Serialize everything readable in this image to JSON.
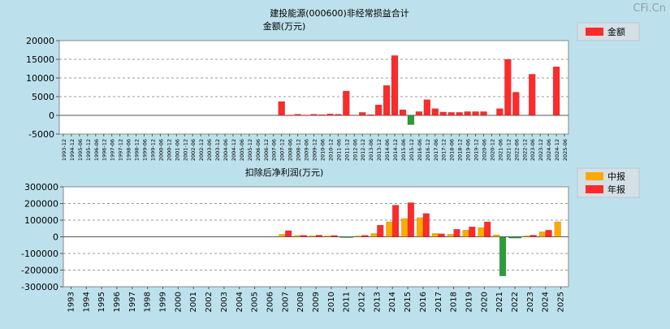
{
  "watermark": "CFi.Cn",
  "colors": {
    "background": "#bde1ec",
    "plot_bg": "#ffffff",
    "positive": "#ff2a2a",
    "negative": "#2f9a3a",
    "interim": "#ffaa00",
    "annual": "#ff2a2a",
    "legend_bg": "#d4dfe6"
  },
  "chart_data": [
    {
      "type": "bar",
      "title": "建投能源(000600)非经常损益合计",
      "ylabel": "金额(万元)",
      "legend": [
        "金额"
      ],
      "ylim": [
        -5000,
        20000
      ],
      "yticks": [
        -5000,
        0,
        5000,
        10000,
        15000,
        20000
      ],
      "categories": [
        "1993-12",
        "1994-12",
        "1995-06",
        "1995-12",
        "1996-06",
        "1996-12",
        "1997-06",
        "1997-12",
        "1998-06",
        "1998-12",
        "1999-06",
        "1999-12",
        "2000-06",
        "2000-12",
        "2001-06",
        "2001-12",
        "2002-06",
        "2002-12",
        "2003-06",
        "2003-12",
        "2004-06",
        "2004-12",
        "2005-06",
        "2005-12",
        "2006-06",
        "2006-12",
        "2007-06",
        "2007-12",
        "2008-06",
        "2008-12",
        "2009-06",
        "2009-12",
        "2010-06",
        "2010-12",
        "2011-06",
        "2011-12",
        "2012-06",
        "2012-12",
        "2013-06",
        "2013-12",
        "2014-06",
        "2014-12",
        "2015-06",
        "2015-12",
        "2016-06",
        "2016-12",
        "2017-06",
        "2017-12",
        "2018-06",
        "2018-12",
        "2019-06",
        "2019-12",
        "2020-06",
        "2020-12",
        "2021-06",
        "2021-12",
        "2022-06",
        "2022-12",
        "2023-06",
        "2023-12",
        "2024-06",
        "2024-12",
        "2025-06"
      ],
      "values": [
        0,
        0,
        0,
        0,
        0,
        0,
        0,
        0,
        0,
        0,
        0,
        0,
        0,
        0,
        0,
        0,
        0,
        0,
        0,
        0,
        0,
        0,
        0,
        0,
        0,
        0,
        0,
        3700,
        100,
        300,
        100,
        300,
        200,
        400,
        300,
        6500,
        0,
        800,
        200,
        2800,
        8000,
        16000,
        1500,
        -2500,
        1000,
        4200,
        1800,
        900,
        800,
        800,
        1000,
        1000,
        1000,
        0,
        1800,
        15000,
        6200,
        0,
        11000,
        0,
        0,
        13000,
        0
      ]
    },
    {
      "type": "bar",
      "title": "扣除后净利润(万元)",
      "legend": [
        "中报",
        "年报"
      ],
      "ylim": [
        -300000,
        300000
      ],
      "yticks": [
        -300000,
        -200000,
        -100000,
        0,
        100000,
        200000,
        300000
      ],
      "categories": [
        "1993",
        "1994",
        "1995",
        "1996",
        "1997",
        "1998",
        "1999",
        "2000",
        "2001",
        "2002",
        "2003",
        "2004",
        "2005",
        "2006",
        "2007",
        "2008",
        "2009",
        "2010",
        "2011",
        "2012",
        "2013",
        "2014",
        "2015",
        "2016",
        "2017",
        "2018",
        "2019",
        "2020",
        "2021",
        "2022",
        "2023",
        "2024",
        "2025"
      ],
      "series": [
        {
          "name": "中报",
          "values": [
            null,
            null,
            null,
            null,
            null,
            null,
            null,
            null,
            null,
            null,
            null,
            null,
            null,
            null,
            15000,
            8000,
            6000,
            6000,
            -4000,
            5000,
            20000,
            90000,
            110000,
            115000,
            20000,
            15000,
            40000,
            55000,
            12000,
            -8000,
            6000,
            30000,
            90000
          ]
        },
        {
          "name": "年报",
          "values": [
            null,
            null,
            null,
            null,
            null,
            null,
            null,
            null,
            null,
            null,
            null,
            null,
            null,
            0,
            37000,
            9000,
            10000,
            8000,
            -5000,
            9000,
            70000,
            190000,
            205000,
            140000,
            18000,
            45000,
            60000,
            90000,
            -235000,
            -8000,
            10000,
            40000,
            null
          ]
        }
      ]
    }
  ]
}
